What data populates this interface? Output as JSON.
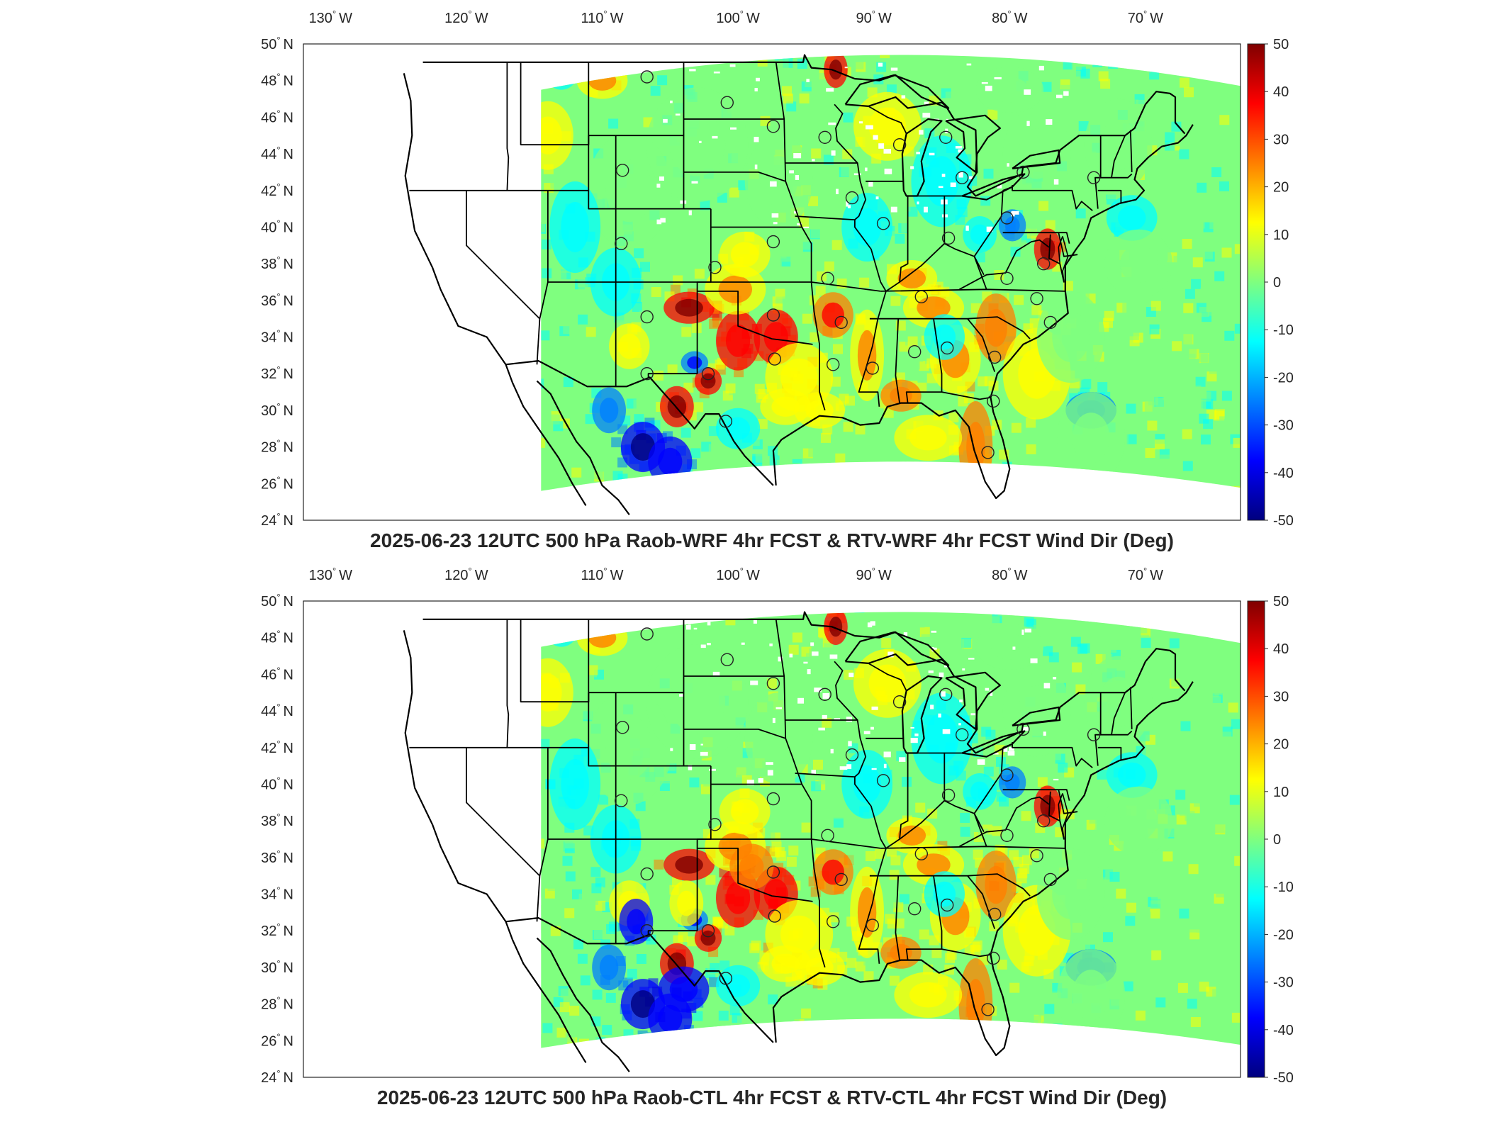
{
  "colors": {
    "background": "#ffffff",
    "axis": "#262626",
    "coast": "#000000",
    "colormap": [
      "#00007f",
      "#0000ff",
      "#007fff",
      "#00ffff",
      "#7fff7f",
      "#ffff00",
      "#ff7f00",
      "#ff0000",
      "#7f0000"
    ]
  },
  "colorbar": {
    "range": [
      -50,
      50
    ],
    "ticks": [
      "50",
      "40",
      "30",
      "20",
      "10",
      "0",
      "-10",
      "-20",
      "-30",
      "-40",
      "-50"
    ]
  },
  "map_data": {
    "lon_range": [
      -132,
      -63
    ],
    "lat_range": [
      24,
      50
    ],
    "lon_ticks": [
      {
        "deg": "130",
        "hemi": "W",
        "lon": -130
      },
      {
        "deg": "120",
        "hemi": "W",
        "lon": -120
      },
      {
        "deg": "110",
        "hemi": "W",
        "lon": -110
      },
      {
        "deg": "100",
        "hemi": "W",
        "lon": -100
      },
      {
        "deg": "90",
        "hemi": "W",
        "lon": -90
      },
      {
        "deg": "80",
        "hemi": "W",
        "lon": -80
      },
      {
        "deg": "70",
        "hemi": "W",
        "lon": -70
      }
    ],
    "lat_ticks": [
      {
        "deg": "50",
        "hemi": "N",
        "lat": 50
      },
      {
        "deg": "48",
        "hemi": "N",
        "lat": 48
      },
      {
        "deg": "46",
        "hemi": "N",
        "lat": 46
      },
      {
        "deg": "44",
        "hemi": "N",
        "lat": 44
      },
      {
        "deg": "42",
        "hemi": "N",
        "lat": 42
      },
      {
        "deg": "40",
        "hemi": "N",
        "lat": 40
      },
      {
        "deg": "38",
        "hemi": "N",
        "lat": 38
      },
      {
        "deg": "36",
        "hemi": "N",
        "lat": 36
      },
      {
        "deg": "34",
        "hemi": "N",
        "lat": 34
      },
      {
        "deg": "32",
        "hemi": "N",
        "lat": 32
      },
      {
        "deg": "30",
        "hemi": "N",
        "lat": 30
      },
      {
        "deg": "28",
        "hemi": "N",
        "lat": 28
      },
      {
        "deg": "26",
        "hemi": "N",
        "lat": 26
      },
      {
        "deg": "24",
        "hemi": "N",
        "lat": 24
      }
    ],
    "stations": [
      [
        -106.7,
        48.2
      ],
      [
        -100.8,
        46.8
      ],
      [
        -97.4,
        45.5
      ],
      [
        -93.6,
        44.9
      ],
      [
        -88.1,
        44.5
      ],
      [
        -84.7,
        44.9
      ],
      [
        -83.5,
        42.7
      ],
      [
        -79.0,
        43.0
      ],
      [
        -73.8,
        42.7
      ],
      [
        -108.5,
        43.1
      ],
      [
        -91.6,
        41.6
      ],
      [
        -89.3,
        40.2
      ],
      [
        -108.6,
        39.1
      ],
      [
        -101.7,
        37.8
      ],
      [
        -97.4,
        39.2
      ],
      [
        -93.4,
        37.2
      ],
      [
        -86.5,
        36.2
      ],
      [
        -84.5,
        39.4
      ],
      [
        -80.2,
        40.5
      ],
      [
        -77.5,
        38.0
      ],
      [
        -80.2,
        37.2
      ],
      [
        -78.0,
        36.1
      ],
      [
        -77.0,
        34.8
      ],
      [
        -81.1,
        32.9
      ],
      [
        -84.6,
        33.4
      ],
      [
        -87.0,
        33.2
      ],
      [
        -90.1,
        32.3
      ],
      [
        -93.0,
        32.5
      ],
      [
        -92.4,
        34.8
      ],
      [
        -97.4,
        35.2
      ],
      [
        -97.3,
        32.8
      ],
      [
        -106.7,
        35.1
      ],
      [
        -106.7,
        32.0
      ],
      [
        -102.2,
        32.0
      ],
      [
        -100.9,
        29.4
      ],
      [
        -81.2,
        30.5
      ],
      [
        -81.6,
        27.7
      ]
    ]
  },
  "panels": [
    {
      "title": "2025-06-23 12UTC 500 hPa Raob-WRF 4hr FCST & RTV-WRF 4hr FCST Wind Dir (Deg)"
    },
    {
      "title": "2025-06-23 12UTC 500 hPa Raob-CTL 4hr FCST & RTV-CTL 4hr FCST Wind Dir (Deg)"
    }
  ]
}
